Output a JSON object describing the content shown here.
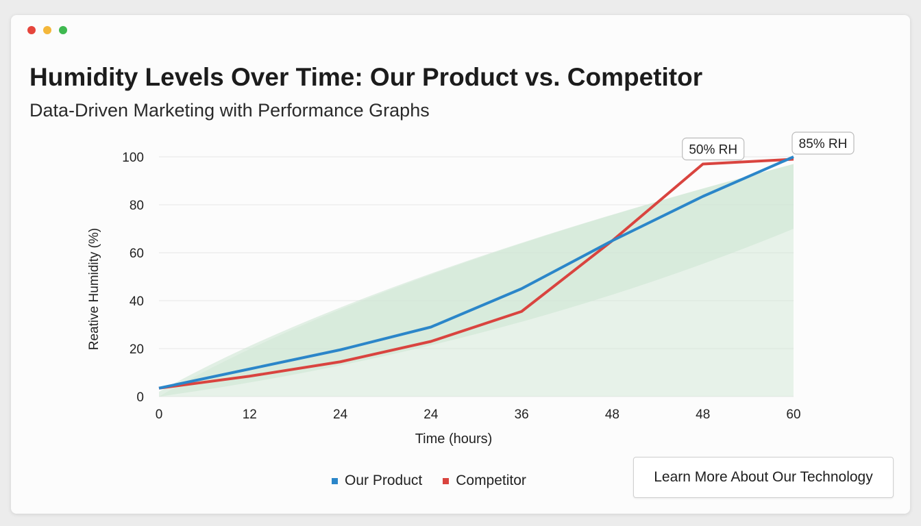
{
  "window": {
    "controls": [
      {
        "name": "close",
        "color": "#e5453c"
      },
      {
        "name": "minimize",
        "color": "#f4b73a"
      },
      {
        "name": "maximize",
        "color": "#3fb950"
      }
    ]
  },
  "header": {
    "title": "Humidity Levels Over Time: Our Product vs. Competitor",
    "subtitle": "Data-Driven Marketing with Performance Graphs"
  },
  "chart_data": {
    "type": "line",
    "xlabel": "Time (hours)",
    "ylabel": "Reative Humidity (%)",
    "categories": [
      "0",
      "12",
      "24",
      "24",
      "36",
      "48",
      "48",
      "60"
    ],
    "ylim": [
      0,
      100
    ],
    "yticks": [
      "0",
      "20",
      "40",
      "60",
      "80",
      "100"
    ],
    "grid": true,
    "legend_placement": "bottom",
    "series": [
      {
        "name": "Our Product",
        "color": "#2b86c9",
        "values": [
          3.5,
          11.5,
          19.5,
          29,
          45,
          65,
          83.5,
          100
        ]
      },
      {
        "name": "Competitor",
        "color": "#d9443f",
        "values": [
          3.5,
          8.5,
          14.5,
          23,
          35.5,
          65,
          97,
          99
        ]
      }
    ],
    "band_color": "#cfe6d3",
    "annotations": [
      {
        "text": "50% RH",
        "category_index": 6,
        "series": "Competitor"
      },
      {
        "text": "85% RH",
        "category_index": 7,
        "series": "Our Product"
      }
    ]
  },
  "cta": {
    "label": "Learn More About Our Technology"
  }
}
